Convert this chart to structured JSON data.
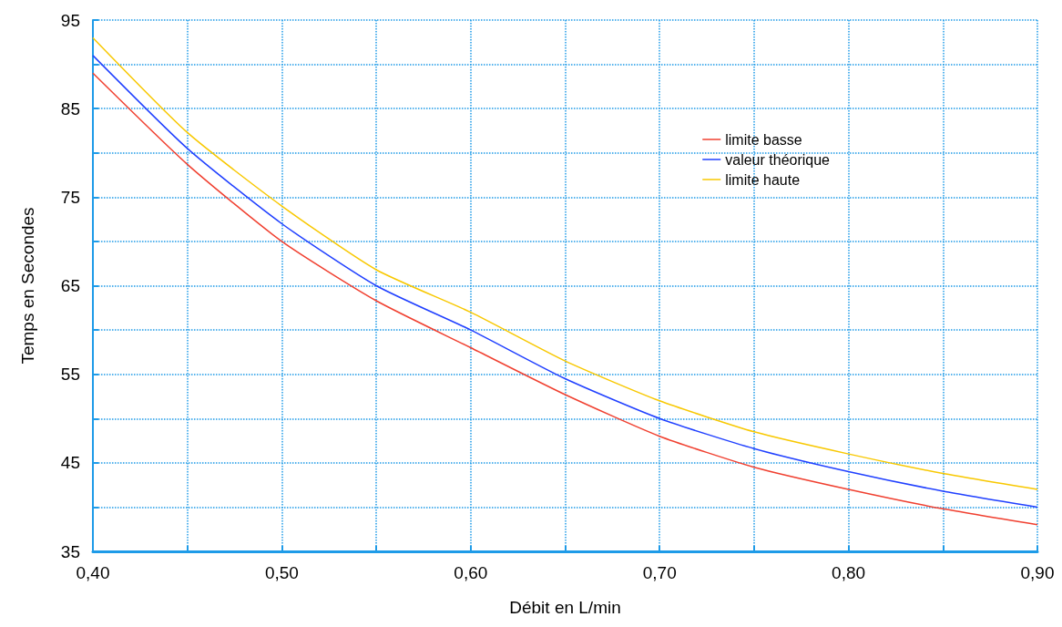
{
  "chart_data": {
    "type": "line",
    "xlabel": "Débit en L/min",
    "ylabel": "Temps en Secondes",
    "x": [
      0.4,
      0.45,
      0.5,
      0.55,
      0.6,
      0.65,
      0.7,
      0.75,
      0.8,
      0.85,
      0.9
    ],
    "series": [
      {
        "name": "limite basse",
        "color": "#f04030",
        "values": [
          89,
          78.7,
          70,
          63.3,
          58,
          52.7,
          48,
          44.5,
          42,
          39.8,
          38
        ]
      },
      {
        "name": "valeur théorique",
        "color": "#2040ff",
        "values": [
          91,
          80.5,
          72,
          65,
          60,
          54.5,
          50,
          46.6,
          44,
          41.8,
          40
        ]
      },
      {
        "name": "limite haute",
        "color": "#f8c800",
        "values": [
          93,
          82.3,
          74,
          66.8,
          62,
          56.5,
          52,
          48.5,
          46,
          43.8,
          42
        ]
      }
    ],
    "xlim": [
      0.4,
      0.9
    ],
    "xticks": [
      {
        "value": 0.4,
        "label": "0,40"
      },
      {
        "value": 0.45,
        "label": null
      },
      {
        "value": 0.5,
        "label": "0,50"
      },
      {
        "value": 0.55,
        "label": null
      },
      {
        "value": 0.6,
        "label": "0,60"
      },
      {
        "value": 0.65,
        "label": null
      },
      {
        "value": 0.7,
        "label": "0,70"
      },
      {
        "value": 0.75,
        "label": null
      },
      {
        "value": 0.8,
        "label": "0,80"
      },
      {
        "value": 0.85,
        "label": null
      },
      {
        "value": 0.9,
        "label": "0,90"
      }
    ],
    "ylim": [
      35,
      95
    ],
    "yticks": [
      35,
      {
        "value": 40,
        "label": null
      },
      45,
      {
        "value": 50,
        "label": null
      },
      55,
      {
        "value": 60,
        "label": null
      },
      65,
      {
        "value": 70,
        "label": null
      },
      75,
      {
        "value": 80,
        "label": null
      },
      85,
      {
        "value": 90,
        "label": null
      },
      95
    ],
    "grid": true,
    "legend": "top right",
    "marker": "none",
    "line_style": "solid"
  }
}
